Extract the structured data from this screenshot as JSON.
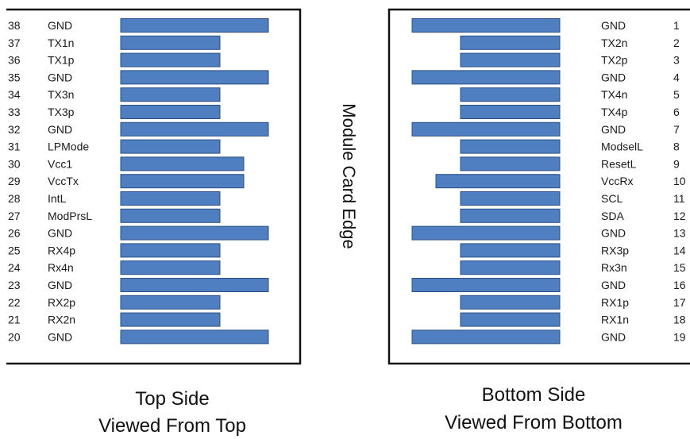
{
  "pin_color": "#4f7fc1",
  "pin_stroke": "#2a4f84",
  "edge_label": "Module Card Edge",
  "top_side": {
    "caption_line1": "Top Side",
    "caption_line2": "Viewed From Top",
    "pins": [
      {
        "num": "38",
        "name": "GND",
        "kind": "gnd"
      },
      {
        "num": "37",
        "name": "TX1n",
        "kind": "signal"
      },
      {
        "num": "36",
        "name": "TX1p",
        "kind": "signal"
      },
      {
        "num": "35",
        "name": "GND",
        "kind": "gnd"
      },
      {
        "num": "34",
        "name": "TX3n",
        "kind": "signal"
      },
      {
        "num": "33",
        "name": "TX3p",
        "kind": "signal"
      },
      {
        "num": "32",
        "name": "GND",
        "kind": "gnd"
      },
      {
        "num": "31",
        "name": "LPMode",
        "kind": "signal"
      },
      {
        "num": "30",
        "name": "Vcc1",
        "kind": "power"
      },
      {
        "num": "29",
        "name": "VccTx",
        "kind": "power"
      },
      {
        "num": "28",
        "name": "IntL",
        "kind": "signal"
      },
      {
        "num": "27",
        "name": "ModPrsL",
        "kind": "signal"
      },
      {
        "num": "26",
        "name": "GND",
        "kind": "gnd"
      },
      {
        "num": "25",
        "name": "RX4p",
        "kind": "signal"
      },
      {
        "num": "24",
        "name": "Rx4n",
        "kind": "signal"
      },
      {
        "num": "23",
        "name": "GND",
        "kind": "gnd"
      },
      {
        "num": "22",
        "name": "RX2p",
        "kind": "signal"
      },
      {
        "num": "21",
        "name": "RX2n",
        "kind": "signal"
      },
      {
        "num": "20",
        "name": "GND",
        "kind": "gnd"
      }
    ]
  },
  "bottom_side": {
    "caption_line1": "Bottom Side",
    "caption_line2": "Viewed From Bottom",
    "pins": [
      {
        "num": "1",
        "name": "GND",
        "kind": "gnd"
      },
      {
        "num": "2",
        "name": "TX2n",
        "kind": "signal"
      },
      {
        "num": "3",
        "name": "TX2p",
        "kind": "signal"
      },
      {
        "num": "4",
        "name": "GND",
        "kind": "gnd"
      },
      {
        "num": "5",
        "name": "TX4n",
        "kind": "signal"
      },
      {
        "num": "6",
        "name": "TX4p",
        "kind": "signal"
      },
      {
        "num": "7",
        "name": "GND",
        "kind": "gnd"
      },
      {
        "num": "8",
        "name": "ModselL",
        "kind": "signal"
      },
      {
        "num": "9",
        "name": "ResetL",
        "kind": "signal"
      },
      {
        "num": "10",
        "name": "VccRx",
        "kind": "power"
      },
      {
        "num": "11",
        "name": "SCL",
        "kind": "signal"
      },
      {
        "num": "12",
        "name": "SDA",
        "kind": "signal"
      },
      {
        "num": "13",
        "name": "GND",
        "kind": "gnd"
      },
      {
        "num": "14",
        "name": "RX3p",
        "kind": "signal"
      },
      {
        "num": "15",
        "name": "Rx3n",
        "kind": "signal"
      },
      {
        "num": "16",
        "name": "GND",
        "kind": "gnd"
      },
      {
        "num": "17",
        "name": "RX1p",
        "kind": "signal"
      },
      {
        "num": "18",
        "name": "RX1n",
        "kind": "signal"
      },
      {
        "num": "19",
        "name": "GND",
        "kind": "gnd"
      }
    ]
  }
}
